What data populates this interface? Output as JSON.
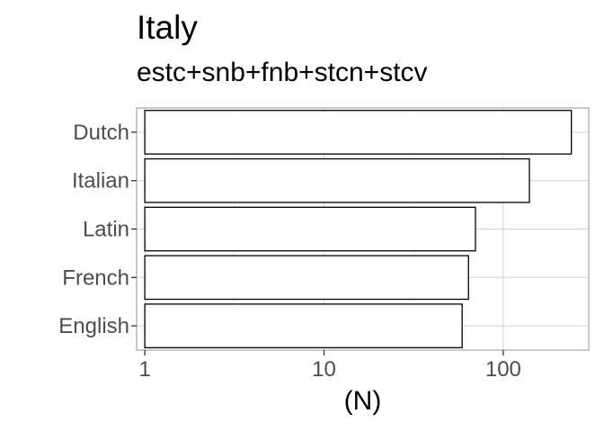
{
  "chart_data": {
    "type": "bar",
    "orientation": "horizontal",
    "title": "Italy",
    "subtitle": "estc+snb+fnb+stcn+stcv",
    "xlabel": "(N)",
    "ylabel": "",
    "x_scale": "log10",
    "xlim": [
      0.9,
      300
    ],
    "x_ticks": [
      1,
      10,
      100
    ],
    "x_tick_labels": [
      "1",
      "10",
      "100"
    ],
    "categories": [
      "Dutch",
      "Italian",
      "Latin",
      "French",
      "English"
    ],
    "values": [
      240,
      140,
      70,
      64,
      59
    ],
    "bar_fill": "#ffffff",
    "bar_stroke": "#000000",
    "grid": true,
    "legend": "none"
  }
}
